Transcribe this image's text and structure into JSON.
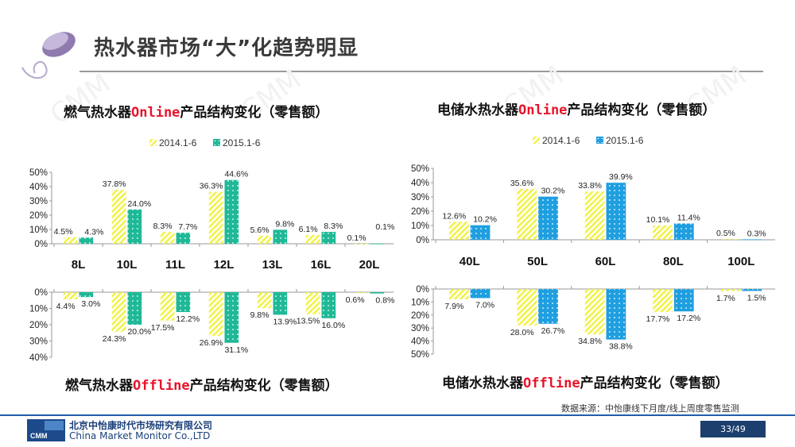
{
  "header": {
    "title": "热水器市场“大”化趋势明显"
  },
  "watermark": "CMM",
  "legend": {
    "series_2014": "2014.1-6",
    "series_2015": "2015.1-6"
  },
  "colors": {
    "s2014": "#f2f24a",
    "gas2015": "#1fb997",
    "elec2015": "#1f9fe0"
  },
  "gas_online_title": {
    "prefix": "燃气热水器",
    "highlight": "Online",
    "suffix": "产品结构变化（零售额）"
  },
  "gas_offline_title": {
    "prefix": "燃气热水器",
    "highlight": "Offline",
    "suffix": "产品结构变化（零售额）"
  },
  "elec_online_title": {
    "prefix": "电储水热水器",
    "highlight": "Online",
    "suffix": "产品结构变化（零售额）"
  },
  "elec_offline_title": {
    "prefix": "电储水热水器",
    "highlight": "Offline",
    "suffix": "产品结构变化（零售额）"
  },
  "chart_data": [
    {
      "id": "gas-online",
      "type": "bar",
      "ylim": [
        0,
        50
      ],
      "ticks": [
        "0%",
        "10%",
        "20%",
        "30%",
        "40%",
        "50%"
      ],
      "categories": [
        "8L",
        "10L",
        "11L",
        "12L",
        "13L",
        "16L",
        "20L"
      ],
      "series": [
        {
          "name": "2014.1-6",
          "values": [
            4.5,
            37.8,
            8.3,
            36.3,
            5.6,
            6.1,
            0.1
          ],
          "labels": [
            "4.5%",
            "37.8%",
            "8.3%",
            "36.3%",
            "5.6%",
            "6.1%",
            "0.1%"
          ]
        },
        {
          "name": "2015.1-6",
          "values": [
            4.3,
            24.0,
            7.7,
            44.6,
            9.8,
            8.3,
            0.1
          ],
          "labels": [
            "4.3%",
            "24.0%",
            "7.7%",
            "44.6%",
            "9.8%",
            "8.3%",
            "0.1%"
          ]
        }
      ]
    },
    {
      "id": "gas-offline",
      "type": "bar",
      "direction": "down",
      "ylim": [
        0,
        40
      ],
      "ticks": [
        "0%",
        "10%",
        "20%",
        "30%",
        "40%"
      ],
      "categories": [
        "8L",
        "10L",
        "11L",
        "12L",
        "13L",
        "16L",
        "20L"
      ],
      "series": [
        {
          "name": "2014.1-6",
          "values": [
            4.4,
            24.3,
            17.5,
            26.9,
            9.8,
            13.5,
            0.6
          ],
          "labels": [
            "4.4%",
            "24.3%",
            "17.5%",
            "26.9%",
            "9.8%",
            "13.5%",
            "0.6%"
          ]
        },
        {
          "name": "2015.1-6",
          "values": [
            3.0,
            20.0,
            12.2,
            31.1,
            13.9,
            16.0,
            0.8
          ],
          "labels": [
            "3.0%",
            "20.0%",
            "12.2%",
            "31.1%",
            "13.9%",
            "16.0%",
            "0.8%"
          ]
        }
      ]
    },
    {
      "id": "elec-online",
      "type": "bar",
      "ylim": [
        0,
        50
      ],
      "ticks": [
        "0%",
        "10%",
        "20%",
        "30%",
        "40%",
        "50%"
      ],
      "categories": [
        "40L",
        "50L",
        "60L",
        "80L",
        "100L"
      ],
      "series": [
        {
          "name": "2014.1-6",
          "values": [
            12.6,
            35.6,
            33.8,
            10.1,
            0.5
          ],
          "labels": [
            "12.6%",
            "35.6%",
            "33.8%",
            "10.1%",
            "0.5%"
          ]
        },
        {
          "name": "2015.1-6",
          "values": [
            10.2,
            30.2,
            39.9,
            11.4,
            0.3
          ],
          "labels": [
            "10.2%",
            "30.2%",
            "39.9%",
            "11.4%",
            "0.3%"
          ]
        }
      ]
    },
    {
      "id": "elec-offline",
      "type": "bar",
      "direction": "down",
      "ylim": [
        0,
        50
      ],
      "ticks": [
        "0%",
        "10%",
        "20%",
        "30%",
        "40%",
        "50%"
      ],
      "categories": [
        "40L",
        "50L",
        "60L",
        "80L",
        "100L"
      ],
      "series": [
        {
          "name": "2014.1-6",
          "values": [
            7.9,
            28.0,
            34.8,
            17.7,
            1.7
          ],
          "labels": [
            "7.9%",
            "28.0%",
            "34.8%",
            "17.7%",
            "1.7%"
          ]
        },
        {
          "name": "2015.1-6",
          "values": [
            7.0,
            26.7,
            38.8,
            17.2,
            1.5
          ],
          "labels": [
            "7.0%",
            "26.7%",
            "38.8%",
            "17.2%",
            "1.5%"
          ]
        }
      ]
    }
  ],
  "footer": {
    "source": "数据来源：中怡康线下月度/线上周度零售监测",
    "company_cn": "北京中怡康时代市场研究有限公司",
    "company_en": "China Market Monitor Co.,LTD",
    "logo_text": "CMM",
    "page": "33/49"
  }
}
